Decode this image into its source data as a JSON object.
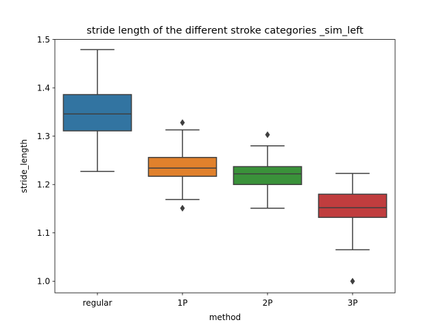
{
  "chart_data": {
    "type": "box",
    "title": "stride length of the different stroke categories _sim_left",
    "xlabel": "method",
    "ylabel": "stride_length",
    "categories": [
      "regular",
      "1P",
      "2P",
      "3P"
    ],
    "ylim": [
      0.976,
      1.5
    ],
    "yticks": [
      "1.0",
      "1.1",
      "1.2",
      "1.3",
      "1.4",
      "1.5"
    ],
    "grid": false,
    "legend": "none",
    "boxes": [
      {
        "category": "regular",
        "color": "#3274a1",
        "whisker_low": 1.227,
        "q1": 1.311,
        "median": 1.346,
        "q3": 1.386,
        "whisker_high": 1.479,
        "outliers": []
      },
      {
        "category": "1P",
        "color": "#e1812c",
        "whisker_low": 1.169,
        "q1": 1.217,
        "median": 1.234,
        "q3": 1.256,
        "whisker_high": 1.313,
        "outliers": [
          1.328,
          1.151
        ]
      },
      {
        "category": "2P",
        "color": "#3a923a",
        "whisker_low": 1.151,
        "q1": 1.2,
        "median": 1.222,
        "q3": 1.237,
        "whisker_high": 1.28,
        "outliers": [
          1.303
        ]
      },
      {
        "category": "3P",
        "color": "#c03d3e",
        "whisker_low": 1.065,
        "q1": 1.132,
        "median": 1.152,
        "q3": 1.18,
        "whisker_high": 1.223,
        "outliers": [
          1.0
        ]
      }
    ]
  }
}
